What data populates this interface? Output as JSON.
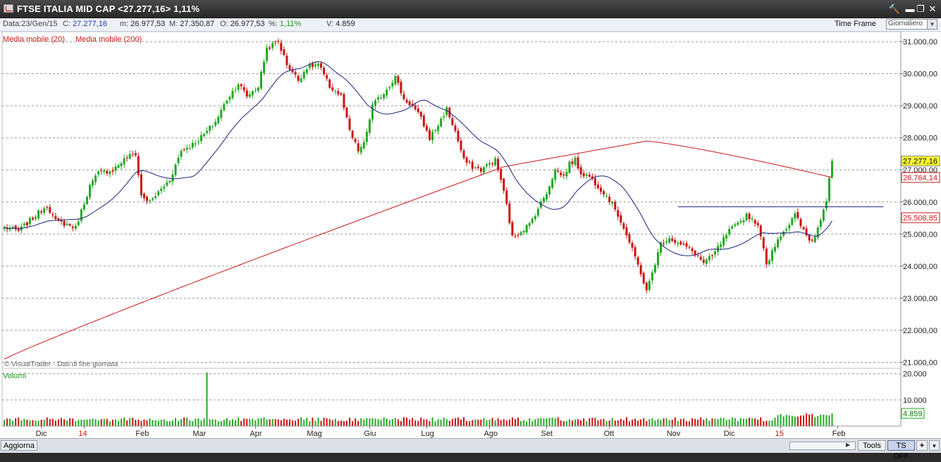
{
  "window": {
    "title": "FTSE ITALIA MID CAP <27.277,16> 1,11%",
    "buttons": {
      "tools": "🔨",
      "minimize": "▬",
      "restore": "❐",
      "close": "✕"
    }
  },
  "infobar": {
    "date_label": "Data:",
    "date_value": "23/Gen/15",
    "close_label": "C:",
    "close_value": "27.277,16",
    "min_label": "m:",
    "min_value": "26.977,53",
    "max_label": "M:",
    "max_value": "27.350,87",
    "open_label": "O:",
    "open_value": "26.977,53",
    "pct_label": "%:",
    "pct_value": "1,11%",
    "vol_label": "V:",
    "vol_value": "4.859",
    "timeframe_label": "Time Frame",
    "timeframe_value": "Giornaliero"
  },
  "legend": {
    "ma20": "Media mobile (20)",
    "ma200": "Media mobile (200)"
  },
  "watermark": "© VisualTrader - Dati di fine giornata",
  "volume_label": "Volumi",
  "colors": {
    "up": "#22aa22",
    "down": "#cc1111",
    "ma20": "#1a237e",
    "ma200": "#cc1a1a",
    "resistance": "#1a237e",
    "last_price_bg": "#ffff33",
    "ma_label_bg": "#ffffff"
  },
  "statusbar": {
    "refresh": "Aggiorna",
    "tools": "Tools",
    "ts": "TS OFF",
    "plus": "+",
    "arrow": "▾"
  },
  "chart_data": {
    "type": "candlestick",
    "title": "FTSE ITALIA MID CAP",
    "ylim": [
      20900,
      31200
    ],
    "y_ticks": [
      {
        "v": 21000,
        "label": "21.000,00"
      },
      {
        "v": 22000,
        "label": "22.000,00"
      },
      {
        "v": 23000,
        "label": "23.000,00"
      },
      {
        "v": 24000,
        "label": "24.000,00"
      },
      {
        "v": 25000,
        "label": "25.000,00"
      },
      {
        "v": 26000,
        "label": "26.000,00"
      },
      {
        "v": 27000,
        "label": "27.000,00"
      },
      {
        "v": 28000,
        "label": "28.000,00"
      },
      {
        "v": 29000,
        "label": "29.000,00"
      },
      {
        "v": 30000,
        "label": "30.000,00"
      },
      {
        "v": 31000,
        "label": "31.000,00"
      }
    ],
    "price_labels": [
      {
        "v": 27277.16,
        "label": "27.277,16",
        "kind": "last"
      },
      {
        "v": 26764.14,
        "label": "26.764,14",
        "kind": "ma200"
      },
      {
        "v": 25508.85,
        "label": "25.508,85",
        "kind": "ma20"
      }
    ],
    "x_ticks": [
      {
        "i": 13,
        "label": "Dic",
        "year": false
      },
      {
        "i": 28,
        "label": "14",
        "year": true
      },
      {
        "i": 48,
        "label": "Feb",
        "year": false
      },
      {
        "i": 68,
        "label": "Mar",
        "year": false
      },
      {
        "i": 88,
        "label": "Apr",
        "year": false
      },
      {
        "i": 108,
        "label": "Mag",
        "year": false
      },
      {
        "i": 128,
        "label": "Giu",
        "year": false
      },
      {
        "i": 148,
        "label": "Lug",
        "year": false
      },
      {
        "i": 170,
        "label": "Ago",
        "year": false
      },
      {
        "i": 190,
        "label": "Set",
        "year": false
      },
      {
        "i": 212,
        "label": "Ott",
        "year": false
      },
      {
        "i": 234,
        "label": "Nov",
        "year": false
      },
      {
        "i": 254,
        "label": "Dic",
        "year": false
      },
      {
        "i": 272,
        "label": "15",
        "year": true
      },
      {
        "i": 292,
        "label": "Feb",
        "year": false
      }
    ],
    "keypoints": [
      [
        0,
        25200
      ],
      [
        5,
        25100
      ],
      [
        10,
        25500
      ],
      [
        15,
        25900
      ],
      [
        18,
        25400
      ],
      [
        22,
        25300
      ],
      [
        25,
        25200
      ],
      [
        30,
        26500
      ],
      [
        33,
        26900
      ],
      [
        38,
        27000
      ],
      [
        43,
        27400
      ],
      [
        46,
        27500
      ],
      [
        48,
        26200
      ],
      [
        51,
        26000
      ],
      [
        55,
        26400
      ],
      [
        58,
        26700
      ],
      [
        62,
        27600
      ],
      [
        66,
        27800
      ],
      [
        70,
        28100
      ],
      [
        74,
        28500
      ],
      [
        78,
        29200
      ],
      [
        82,
        29700
      ],
      [
        85,
        29300
      ],
      [
        89,
        29600
      ],
      [
        92,
        30800
      ],
      [
        96,
        31000
      ],
      [
        99,
        30300
      ],
      [
        103,
        29800
      ],
      [
        106,
        30200
      ],
      [
        110,
        30300
      ],
      [
        114,
        29600
      ],
      [
        118,
        29300
      ],
      [
        121,
        28200
      ],
      [
        124,
        27600
      ],
      [
        126,
        27800
      ],
      [
        129,
        29000
      ],
      [
        133,
        29400
      ],
      [
        137,
        29900
      ],
      [
        140,
        29200
      ],
      [
        143,
        29000
      ],
      [
        146,
        28600
      ],
      [
        149,
        28000
      ],
      [
        152,
        28400
      ],
      [
        155,
        28900
      ],
      [
        158,
        28200
      ],
      [
        161,
        27300
      ],
      [
        164,
        27100
      ],
      [
        167,
        27000
      ],
      [
        170,
        27200
      ],
      [
        172,
        27300
      ],
      [
        174,
        26700
      ],
      [
        176,
        25900
      ],
      [
        178,
        24900
      ],
      [
        181,
        25100
      ],
      [
        184,
        25300
      ],
      [
        187,
        25800
      ],
      [
        190,
        26300
      ],
      [
        193,
        27000
      ],
      [
        196,
        26800
      ],
      [
        198,
        27200
      ],
      [
        200,
        27300
      ],
      [
        202,
        26900
      ],
      [
        205,
        26800
      ],
      [
        208,
        26500
      ],
      [
        211,
        26200
      ],
      [
        214,
        25800
      ],
      [
        217,
        25200
      ],
      [
        220,
        24500
      ],
      [
        223,
        23800
      ],
      [
        225,
        23200
      ],
      [
        227,
        23800
      ],
      [
        230,
        24700
      ],
      [
        233,
        24900
      ],
      [
        236,
        24700
      ],
      [
        239,
        24600
      ],
      [
        242,
        24400
      ],
      [
        245,
        24100
      ],
      [
        248,
        24300
      ],
      [
        251,
        24700
      ],
      [
        254,
        25100
      ],
      [
        257,
        25300
      ],
      [
        260,
        25600
      ],
      [
        263,
        25400
      ],
      [
        265,
        25000
      ],
      [
        267,
        24000
      ],
      [
        269,
        24500
      ],
      [
        272,
        25000
      ],
      [
        275,
        25300
      ],
      [
        277,
        25600
      ],
      [
        280,
        25100
      ],
      [
        282,
        24800
      ],
      [
        284,
        24900
      ],
      [
        286,
        25500
      ],
      [
        288,
        26100
      ],
      [
        289,
        26800
      ],
      [
        290,
        27277
      ]
    ],
    "n_bars": 291,
    "volume": {
      "ylim": [
        0,
        21000
      ],
      "ticks": [
        {
          "v": 10000,
          "label": "10.000"
        },
        {
          "v": 20000,
          "label": "20.000"
        }
      ],
      "last_label": "4.859",
      "spike_index": 71,
      "spike_value": 20500
    },
    "resistance": {
      "y": 25850,
      "from_i": 236,
      "to_i": 308
    },
    "ma20_label": "Media mobile (20)",
    "ma200_label": "Media mobile (200)"
  }
}
